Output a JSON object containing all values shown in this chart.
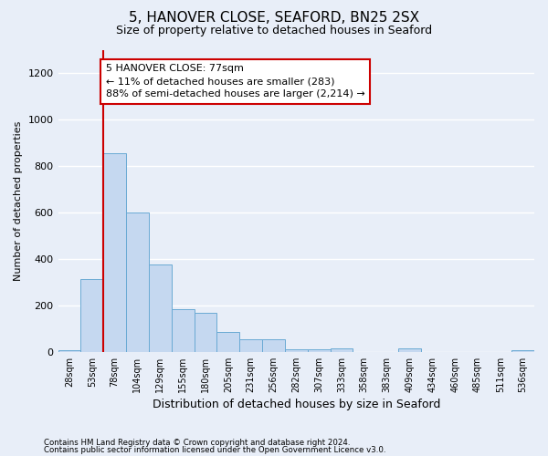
{
  "title1": "5, HANOVER CLOSE, SEAFORD, BN25 2SX",
  "title2": "Size of property relative to detached houses in Seaford",
  "xlabel": "Distribution of detached houses by size in Seaford",
  "ylabel": "Number of detached properties",
  "footnote1": "Contains HM Land Registry data © Crown copyright and database right 2024.",
  "footnote2": "Contains public sector information licensed under the Open Government Licence v3.0.",
  "bar_labels": [
    "28sqm",
    "53sqm",
    "78sqm",
    "104sqm",
    "129sqm",
    "155sqm",
    "180sqm",
    "205sqm",
    "231sqm",
    "256sqm",
    "282sqm",
    "307sqm",
    "333sqm",
    "358sqm",
    "383sqm",
    "409sqm",
    "434sqm",
    "460sqm",
    "485sqm",
    "511sqm",
    "536sqm"
  ],
  "bar_values": [
    8,
    315,
    855,
    600,
    375,
    185,
    170,
    85,
    55,
    55,
    10,
    10,
    15,
    0,
    0,
    15,
    0,
    0,
    0,
    0,
    8
  ],
  "bar_color": "#c5d8f0",
  "bar_edge_color": "#6aaad4",
  "property_line_color": "#cc0000",
  "annotation_text": "5 HANOVER CLOSE: 77sqm\n← 11% of detached houses are smaller (283)\n88% of semi-detached houses are larger (2,214) →",
  "annotation_box_color": "#ffffff",
  "annotation_box_edge_color": "#cc0000",
  "ylim": [
    0,
    1300
  ],
  "yticks": [
    0,
    200,
    400,
    600,
    800,
    1000,
    1200
  ],
  "background_color": "#e8eef8",
  "grid_color": "#d0d8e8",
  "title_fontsize": 11,
  "subtitle_fontsize": 9,
  "ylabel_fontsize": 8,
  "xlabel_fontsize": 9,
  "tick_fontsize": 8,
  "annot_fontsize": 8
}
